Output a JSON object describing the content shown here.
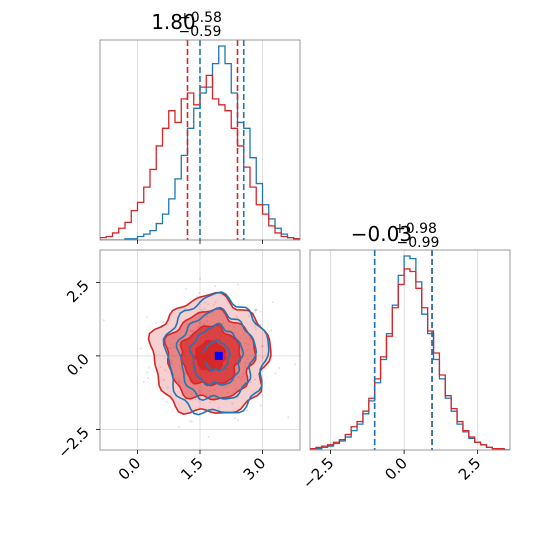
{
  "chart_data": [
    {
      "panel": "marginal-param1",
      "type": "histogram-step",
      "title": {
        "value": "1.80",
        "upper": "+0.58",
        "lower": "−0.59"
      },
      "xlim": [
        -0.9,
        3.9
      ],
      "grid": true,
      "series": [
        {
          "color": "#1f77b4",
          "bin_edges": [
            -0.9,
            -0.75,
            -0.6,
            -0.45,
            -0.3,
            -0.15,
            0.0,
            0.15,
            0.3,
            0.45,
            0.6,
            0.75,
            0.9,
            1.05,
            1.2,
            1.35,
            1.5,
            1.65,
            1.8,
            1.95,
            2.1,
            2.25,
            2.4,
            2.55,
            2.7,
            2.85,
            3.0,
            3.15,
            3.3,
            3.45,
            3.6,
            3.75,
            3.9
          ],
          "counts": [
            0,
            0,
            0,
            0,
            1,
            1,
            3,
            5,
            8,
            14,
            22,
            35,
            52,
            72,
            95,
            112,
            125,
            130,
            150,
            165,
            150,
            125,
            100,
            95,
            70,
            48,
            30,
            18,
            10,
            5,
            2,
            1
          ],
          "quantile_lines": [
            1.5,
            2.55
          ]
        },
        {
          "color": "#d62728",
          "bin_edges": [
            -0.9,
            -0.75,
            -0.6,
            -0.45,
            -0.3,
            -0.15,
            0.0,
            0.15,
            0.3,
            0.45,
            0.6,
            0.75,
            0.9,
            1.05,
            1.2,
            1.35,
            1.5,
            1.65,
            1.8,
            1.95,
            2.1,
            2.25,
            2.4,
            2.55,
            2.7,
            2.85,
            3.0,
            3.15,
            3.3,
            3.45,
            3.6,
            3.75,
            3.9
          ],
          "counts": [
            2,
            3,
            6,
            10,
            15,
            25,
            32,
            45,
            60,
            80,
            95,
            110,
            100,
            120,
            125,
            115,
            130,
            140,
            120,
            115,
            110,
            95,
            80,
            62,
            45,
            30,
            22,
            12,
            6,
            3,
            2,
            1
          ],
          "quantile_lines": [
            1.2,
            2.4
          ]
        }
      ]
    },
    {
      "panel": "marginal-param2",
      "type": "histogram-step",
      "title": {
        "value": "−0.03",
        "upper": "+0.98",
        "lower": "−0.99"
      },
      "xlim": [
        -3.2,
        3.6
      ],
      "grid": true,
      "series": [
        {
          "color": "#1f77b4",
          "bin_edges": [
            -3.2,
            -3.0,
            -2.8,
            -2.6,
            -2.4,
            -2.2,
            -2.0,
            -1.8,
            -1.6,
            -1.4,
            -1.2,
            -1.0,
            -0.8,
            -0.6,
            -0.4,
            -0.2,
            0.0,
            0.2,
            0.4,
            0.6,
            0.8,
            1.0,
            1.2,
            1.4,
            1.6,
            1.8,
            2.0,
            2.2,
            2.4,
            2.6,
            2.8,
            3.0,
            3.2,
            3.4,
            3.6
          ],
          "counts": [
            1,
            1,
            2,
            3,
            5,
            7,
            10,
            15,
            20,
            28,
            38,
            52,
            70,
            90,
            112,
            135,
            150,
            148,
            130,
            105,
            90,
            70,
            55,
            40,
            30,
            20,
            14,
            9,
            6,
            4,
            2,
            1,
            1,
            0
          ],
          "quantile_lines": [
            -1.0,
            0.95
          ]
        },
        {
          "color": "#d62728",
          "bin_edges": [
            -3.2,
            -3.0,
            -2.8,
            -2.6,
            -2.4,
            -2.2,
            -2.0,
            -1.8,
            -1.6,
            -1.4,
            -1.2,
            -1.0,
            -0.8,
            -0.6,
            -0.4,
            -0.2,
            0.0,
            0.2,
            0.4,
            0.6,
            0.8,
            1.0,
            1.2,
            1.4,
            1.6,
            1.8,
            2.0,
            2.2,
            2.4,
            2.6,
            2.8,
            3.0,
            3.2,
            3.4,
            3.6
          ],
          "counts": [
            1,
            2,
            3,
            4,
            6,
            8,
            12,
            18,
            22,
            30,
            40,
            55,
            72,
            88,
            110,
            128,
            140,
            138,
            125,
            110,
            92,
            75,
            58,
            42,
            32,
            22,
            15,
            10,
            6,
            4,
            2,
            1,
            1,
            0
          ],
          "quantile_lines": [
            -1.0,
            0.95
          ]
        }
      ]
    },
    {
      "panel": "joint",
      "type": "contour-2d",
      "xlim": [
        -0.9,
        3.9
      ],
      "ylim": [
        -3.2,
        3.6
      ],
      "grid": true,
      "series": [
        {
          "color": "#1f77b4",
          "center": [
            1.9,
            0.0
          ],
          "sigma": [
            0.6,
            1.0
          ],
          "levels": [
            0.5,
            1.0,
            1.5,
            2.0
          ],
          "filled": false
        },
        {
          "color": "#d62728",
          "center": [
            1.75,
            0.0
          ],
          "sigma": [
            0.7,
            1.0
          ],
          "levels": [
            0.5,
            1.0,
            1.5,
            2.0
          ],
          "filled": true
        }
      ],
      "markers": [
        {
          "color": "#0000ff",
          "x": 1.95,
          "y": 0.0,
          "shape": "square"
        },
        {
          "color": "#d62728",
          "x": 1.65,
          "y": -0.05,
          "shape": "square"
        }
      ]
    }
  ],
  "axes": {
    "param1_ticks": [
      "0.0",
      "1.5",
      "3.0"
    ],
    "param1_tick_values": [
      0.0,
      1.5,
      3.0
    ],
    "param2_ticks": [
      "−2.5",
      "0.0",
      "2.5"
    ],
    "param2_tick_values": [
      -2.5,
      0.0,
      2.5
    ]
  }
}
